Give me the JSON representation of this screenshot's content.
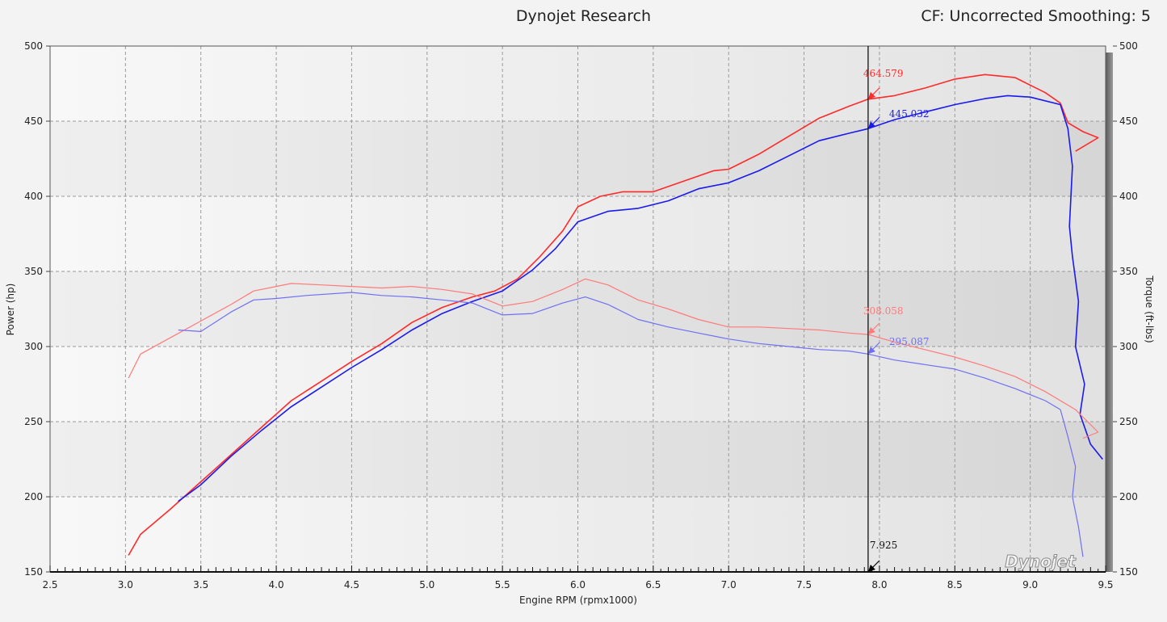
{
  "header": {
    "title": "Dynojet Research",
    "cf_text": "CF: Uncorrected Smoothing: 5"
  },
  "logo_text": "Dynojet",
  "colors": {
    "power_a": "#ff2a2a",
    "power_b": "#1a1aee",
    "torque_a": "#ff7a7a",
    "torque_b": "#6f6ff5",
    "cursor": "#000000"
  },
  "chart_data": {
    "type": "line",
    "xlabel": "Engine RPM (rpmx1000)",
    "ylabel_left": "Power (hp)",
    "ylabel_right": "Torque (ft-lbs)",
    "xlim": [
      2.5,
      9.5
    ],
    "ylim_left": [
      150,
      500
    ],
    "ylim_right": [
      150,
      500
    ],
    "x_ticks": [
      "2.5",
      "3.0",
      "3.5",
      "4.0",
      "4.5",
      "5.0",
      "5.5",
      "6.0",
      "6.5",
      "7.0",
      "7.5",
      "8.0",
      "8.5",
      "9.0",
      "9.5"
    ],
    "y_ticks_left": [
      "150",
      "200",
      "250",
      "300",
      "350",
      "400",
      "450",
      "500"
    ],
    "y_ticks_right": [
      "150",
      "200",
      "250",
      "300",
      "350",
      "400",
      "450",
      "500"
    ],
    "grid": true,
    "cursor": {
      "x": 7.925,
      "x_label": "7.925",
      "readouts": [
        {
          "label": "464.579",
          "y": 464.579,
          "series": "power_a"
        },
        {
          "label": "445.032",
          "y": 445.032,
          "series": "power_b"
        },
        {
          "label": "308.058",
          "y": 308.058,
          "series": "torque_a"
        },
        {
          "label": "295.087",
          "y": 295.087,
          "series": "torque_b"
        }
      ]
    },
    "series": [
      {
        "key": "power_a",
        "width": 1.6,
        "points": [
          [
            3.02,
            161
          ],
          [
            3.1,
            175
          ],
          [
            3.3,
            192
          ],
          [
            3.5,
            210
          ],
          [
            3.7,
            228
          ],
          [
            3.9,
            246
          ],
          [
            4.1,
            264
          ],
          [
            4.3,
            277
          ],
          [
            4.5,
            290
          ],
          [
            4.7,
            302
          ],
          [
            4.9,
            316
          ],
          [
            5.1,
            326
          ],
          [
            5.3,
            333
          ],
          [
            5.45,
            337
          ],
          [
            5.6,
            345
          ],
          [
            5.75,
            360
          ],
          [
            5.9,
            377
          ],
          [
            6.0,
            393
          ],
          [
            6.15,
            400
          ],
          [
            6.3,
            403
          ],
          [
            6.5,
            403
          ],
          [
            6.7,
            410
          ],
          [
            6.9,
            417
          ],
          [
            7.0,
            418
          ],
          [
            7.2,
            428
          ],
          [
            7.4,
            440
          ],
          [
            7.6,
            452
          ],
          [
            7.8,
            460
          ],
          [
            7.925,
            464.6
          ],
          [
            8.1,
            467
          ],
          [
            8.3,
            472
          ],
          [
            8.5,
            478
          ],
          [
            8.7,
            481
          ],
          [
            8.9,
            479
          ],
          [
            9.1,
            469
          ],
          [
            9.2,
            462
          ],
          [
            9.25,
            449
          ],
          [
            9.35,
            443
          ],
          [
            9.45,
            439
          ],
          [
            9.3,
            430
          ]
        ]
      },
      {
        "key": "power_b",
        "width": 1.6,
        "points": [
          [
            3.35,
            197
          ],
          [
            3.5,
            208
          ],
          [
            3.7,
            227
          ],
          [
            3.9,
            244
          ],
          [
            4.1,
            260
          ],
          [
            4.3,
            273
          ],
          [
            4.5,
            286
          ],
          [
            4.7,
            298
          ],
          [
            4.9,
            311
          ],
          [
            5.1,
            322
          ],
          [
            5.3,
            330
          ],
          [
            5.5,
            337
          ],
          [
            5.7,
            351
          ],
          [
            5.85,
            365
          ],
          [
            6.0,
            383
          ],
          [
            6.2,
            390
          ],
          [
            6.4,
            392
          ],
          [
            6.6,
            397
          ],
          [
            6.8,
            405
          ],
          [
            7.0,
            409
          ],
          [
            7.2,
            417
          ],
          [
            7.4,
            427
          ],
          [
            7.6,
            437
          ],
          [
            7.8,
            442
          ],
          [
            7.925,
            445
          ],
          [
            8.1,
            451
          ],
          [
            8.3,
            456
          ],
          [
            8.5,
            461
          ],
          [
            8.7,
            465
          ],
          [
            8.85,
            467
          ],
          [
            9.0,
            466
          ],
          [
            9.2,
            461
          ],
          [
            9.25,
            445
          ],
          [
            9.28,
            420
          ],
          [
            9.26,
            380
          ],
          [
            9.28,
            360
          ],
          [
            9.32,
            330
          ],
          [
            9.3,
            300
          ],
          [
            9.36,
            275
          ],
          [
            9.33,
            255
          ],
          [
            9.4,
            235
          ],
          [
            9.48,
            225
          ]
        ]
      },
      {
        "key": "torque_a",
        "width": 1.2,
        "points": [
          [
            3.02,
            279
          ],
          [
            3.1,
            295
          ],
          [
            3.3,
            306
          ],
          [
            3.5,
            317
          ],
          [
            3.7,
            328
          ],
          [
            3.85,
            337
          ],
          [
            4.0,
            340
          ],
          [
            4.1,
            342
          ],
          [
            4.3,
            341
          ],
          [
            4.5,
            340
          ],
          [
            4.7,
            339
          ],
          [
            4.9,
            340
          ],
          [
            5.1,
            338
          ],
          [
            5.3,
            335
          ],
          [
            5.5,
            327
          ],
          [
            5.7,
            330
          ],
          [
            5.9,
            338
          ],
          [
            6.05,
            345
          ],
          [
            6.2,
            341
          ],
          [
            6.4,
            331
          ],
          [
            6.6,
            325
          ],
          [
            6.8,
            318
          ],
          [
            7.0,
            313
          ],
          [
            7.2,
            313
          ],
          [
            7.4,
            312
          ],
          [
            7.6,
            311
          ],
          [
            7.8,
            309
          ],
          [
            7.925,
            308
          ],
          [
            8.1,
            303
          ],
          [
            8.3,
            298
          ],
          [
            8.5,
            293
          ],
          [
            8.7,
            287
          ],
          [
            8.9,
            280
          ],
          [
            9.1,
            270
          ],
          [
            9.3,
            258
          ],
          [
            9.45,
            243
          ],
          [
            9.35,
            239
          ]
        ]
      },
      {
        "key": "torque_b",
        "width": 1.2,
        "points": [
          [
            3.35,
            311
          ],
          [
            3.5,
            310
          ],
          [
            3.7,
            323
          ],
          [
            3.85,
            331
          ],
          [
            4.0,
            332
          ],
          [
            4.2,
            334
          ],
          [
            4.5,
            336
          ],
          [
            4.7,
            334
          ],
          [
            4.9,
            333
          ],
          [
            5.1,
            331
          ],
          [
            5.3,
            329
          ],
          [
            5.5,
            321
          ],
          [
            5.7,
            322
          ],
          [
            5.9,
            329
          ],
          [
            6.05,
            333
          ],
          [
            6.2,
            328
          ],
          [
            6.4,
            318
          ],
          [
            6.6,
            313
          ],
          [
            6.8,
            309
          ],
          [
            7.0,
            305
          ],
          [
            7.2,
            302
          ],
          [
            7.4,
            300
          ],
          [
            7.6,
            298
          ],
          [
            7.8,
            297
          ],
          [
            7.925,
            295
          ],
          [
            8.1,
            291
          ],
          [
            8.3,
            288
          ],
          [
            8.5,
            285
          ],
          [
            8.7,
            279
          ],
          [
            8.9,
            272
          ],
          [
            9.1,
            264
          ],
          [
            9.2,
            258
          ],
          [
            9.25,
            240
          ],
          [
            9.3,
            220
          ],
          [
            9.28,
            200
          ],
          [
            9.32,
            180
          ],
          [
            9.35,
            160
          ]
        ]
      }
    ]
  }
}
